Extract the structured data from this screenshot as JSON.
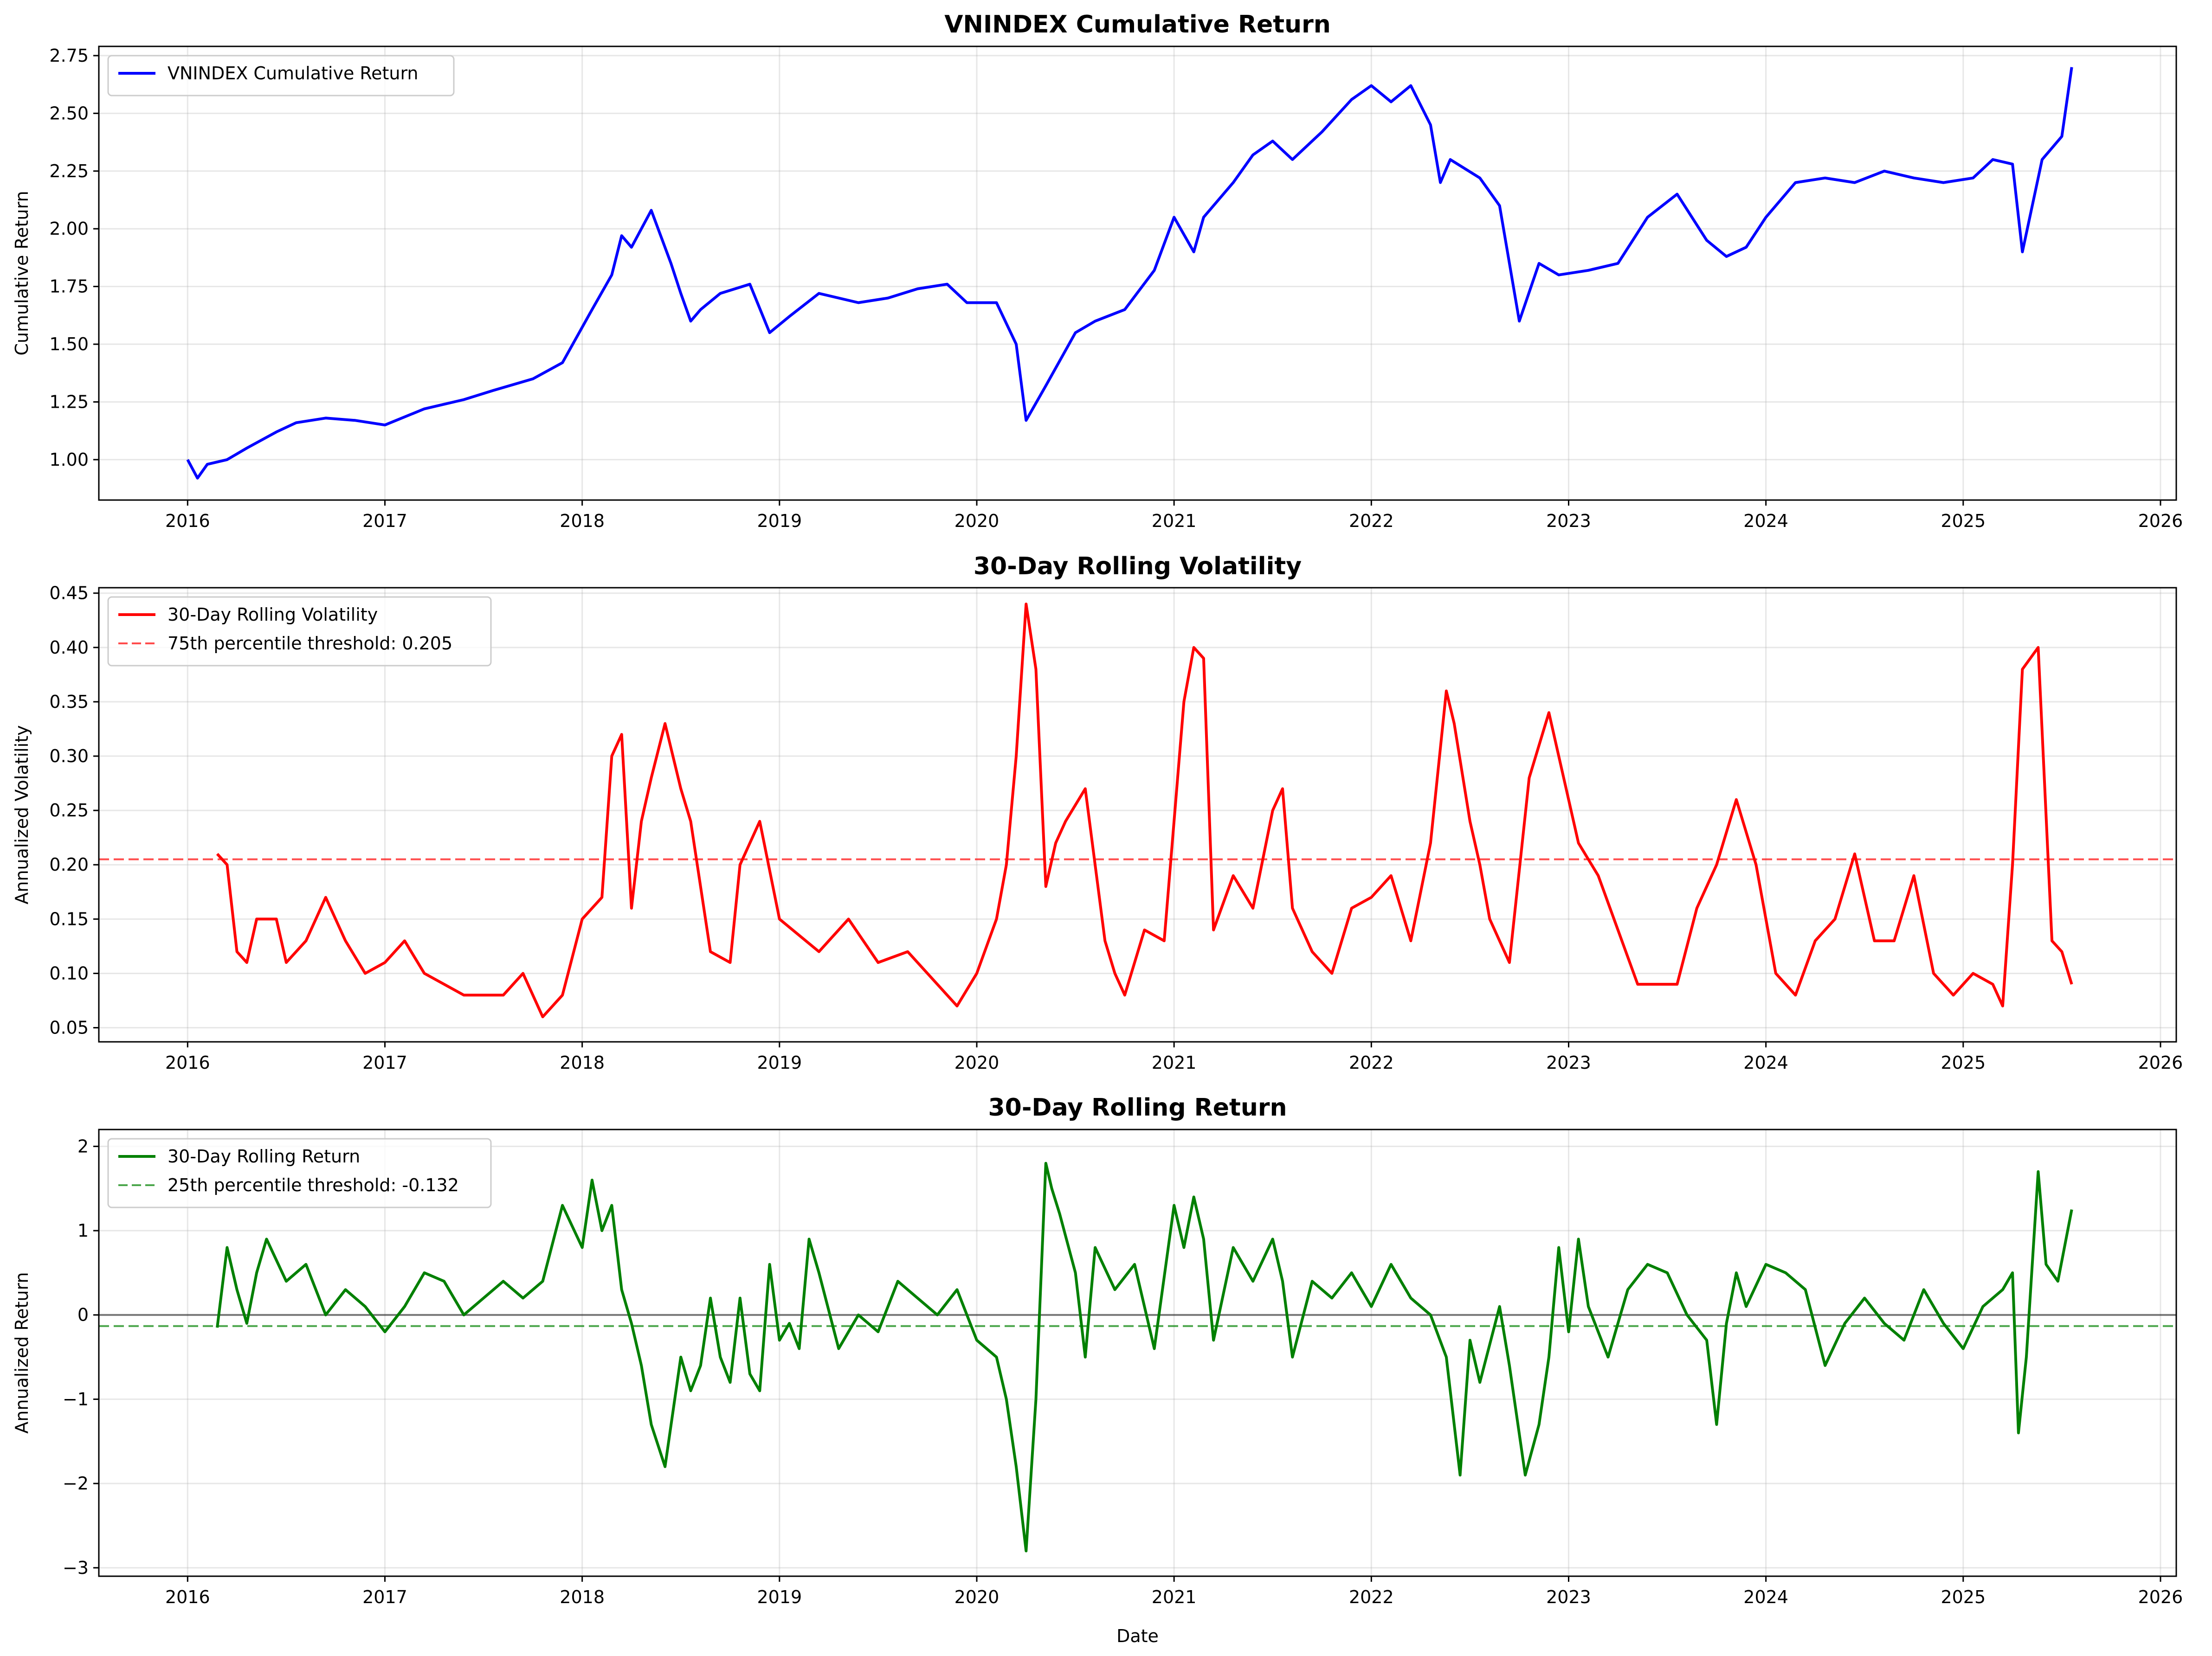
{
  "chart_data": [
    {
      "type": "line",
      "title": "VNINDEX Cumulative Return",
      "xlabel": "",
      "ylabel": "Cumulative Return",
      "xlim": [
        2015.55,
        2026.08
      ],
      "ylim": [
        0.825,
        2.79
      ],
      "xticks": [
        2016,
        2017,
        2018,
        2019,
        2020,
        2021,
        2022,
        2023,
        2024,
        2025,
        2026
      ],
      "xtick_labels": [
        "2016",
        "2017",
        "2018",
        "2019",
        "2020",
        "2021",
        "2022",
        "2023",
        "2024",
        "2025",
        "2026"
      ],
      "yticks": [
        1.0,
        1.25,
        1.5,
        1.75,
        2.0,
        2.25,
        2.5,
        2.75
      ],
      "ytick_labels": [
        "1.00",
        "1.25",
        "1.50",
        "1.75",
        "2.00",
        "2.25",
        "2.50",
        "2.75"
      ],
      "grid": true,
      "legend_position": "upper left",
      "series": [
        {
          "name": "VNINDEX Cumulative Return",
          "color": "#0000ff",
          "style": "solid",
          "x": [
            2016.0,
            2016.05,
            2016.1,
            2016.2,
            2016.3,
            2016.45,
            2016.55,
            2016.7,
            2016.85,
            2017.0,
            2017.2,
            2017.4,
            2017.55,
            2017.75,
            2017.9,
            2018.05,
            2018.15,
            2018.2,
            2018.25,
            2018.35,
            2018.45,
            2018.5,
            2018.55,
            2018.6,
            2018.7,
            2018.85,
            2018.95,
            2019.05,
            2019.2,
            2019.4,
            2019.55,
            2019.7,
            2019.85,
            2019.95,
            2020.1,
            2020.2,
            2020.25,
            2020.35,
            2020.5,
            2020.6,
            2020.75,
            2020.9,
            2021.0,
            2021.1,
            2021.15,
            2021.3,
            2021.4,
            2021.5,
            2021.6,
            2021.75,
            2021.9,
            2022.0,
            2022.1,
            2022.2,
            2022.3,
            2022.35,
            2022.4,
            2022.55,
            2022.65,
            2022.75,
            2022.85,
            2022.95,
            2023.1,
            2023.25,
            2023.4,
            2023.55,
            2023.7,
            2023.8,
            2023.9,
            2024.0,
            2024.15,
            2024.3,
            2024.45,
            2024.6,
            2024.75,
            2024.9,
            2025.05,
            2025.15,
            2025.25,
            2025.3,
            2025.4,
            2025.5,
            2025.55
          ],
          "y": [
            1.0,
            0.92,
            0.98,
            1.0,
            1.05,
            1.12,
            1.16,
            1.18,
            1.17,
            1.15,
            1.22,
            1.26,
            1.3,
            1.35,
            1.42,
            1.65,
            1.8,
            1.97,
            1.92,
            2.08,
            1.85,
            1.72,
            1.6,
            1.65,
            1.72,
            1.76,
            1.55,
            1.62,
            1.72,
            1.68,
            1.7,
            1.74,
            1.76,
            1.68,
            1.68,
            1.5,
            1.17,
            1.32,
            1.55,
            1.6,
            1.65,
            1.82,
            2.05,
            1.9,
            2.05,
            2.2,
            2.32,
            2.38,
            2.3,
            2.42,
            2.56,
            2.62,
            2.55,
            2.62,
            2.45,
            2.2,
            2.3,
            2.22,
            2.1,
            1.6,
            1.85,
            1.8,
            1.82,
            1.85,
            2.05,
            2.15,
            1.95,
            1.88,
            1.92,
            2.05,
            2.2,
            2.22,
            2.2,
            2.25,
            2.22,
            2.2,
            2.22,
            2.3,
            2.28,
            1.9,
            2.3,
            2.4,
            2.7
          ]
        }
      ]
    },
    {
      "type": "line",
      "title": "30-Day Rolling Volatility",
      "xlabel": "",
      "ylabel": "Annualized Volatility",
      "xlim": [
        2015.55,
        2026.08
      ],
      "ylim": [
        0.037,
        0.455
      ],
      "xticks": [
        2016,
        2017,
        2018,
        2019,
        2020,
        2021,
        2022,
        2023,
        2024,
        2025,
        2026
      ],
      "xtick_labels": [
        "2016",
        "2017",
        "2018",
        "2019",
        "2020",
        "2021",
        "2022",
        "2023",
        "2024",
        "2025",
        "2026"
      ],
      "yticks": [
        0.05,
        0.1,
        0.15,
        0.2,
        0.25,
        0.3,
        0.35,
        0.4,
        0.45
      ],
      "ytick_labels": [
        "0.05",
        "0.10",
        "0.15",
        "0.20",
        "0.25",
        "0.30",
        "0.35",
        "0.40",
        "0.45"
      ],
      "grid": true,
      "legend_position": "upper left",
      "threshold": {
        "value": 0.205,
        "label": "75th percentile threshold: 0.205",
        "color": "#ff0000"
      },
      "series": [
        {
          "name": "30-Day Rolling Volatility",
          "color": "#ff0000",
          "style": "solid",
          "x": [
            2016.15,
            2016.2,
            2016.25,
            2016.3,
            2016.35,
            2016.45,
            2016.5,
            2016.6,
            2016.7,
            2016.8,
            2016.9,
            2017.0,
            2017.1,
            2017.2,
            2017.4,
            2017.6,
            2017.7,
            2017.8,
            2017.9,
            2018.0,
            2018.1,
            2018.15,
            2018.2,
            2018.25,
            2018.3,
            2018.35,
            2018.42,
            2018.5,
            2018.55,
            2018.65,
            2018.75,
            2018.8,
            2018.9,
            2019.0,
            2019.2,
            2019.35,
            2019.5,
            2019.65,
            2019.8,
            2019.9,
            2020.0,
            2020.1,
            2020.15,
            2020.2,
            2020.25,
            2020.3,
            2020.35,
            2020.4,
            2020.45,
            2020.55,
            2020.65,
            2020.7,
            2020.75,
            2020.85,
            2020.95,
            2021.05,
            2021.1,
            2021.15,
            2021.2,
            2021.3,
            2021.4,
            2021.5,
            2021.55,
            2021.6,
            2021.7,
            2021.8,
            2021.9,
            2022.0,
            2022.1,
            2022.15,
            2022.2,
            2022.3,
            2022.38,
            2022.42,
            2022.5,
            2022.55,
            2022.6,
            2022.7,
            2022.8,
            2022.9,
            2022.95,
            2023.05,
            2023.15,
            2023.25,
            2023.35,
            2023.45,
            2023.55,
            2023.65,
            2023.75,
            2023.85,
            2023.95,
            2024.05,
            2024.15,
            2024.25,
            2024.35,
            2024.45,
            2024.55,
            2024.65,
            2024.75,
            2024.85,
            2024.95,
            2025.05,
            2025.15,
            2025.2,
            2025.25,
            2025.3,
            2025.38,
            2025.45,
            2025.5,
            2025.55
          ],
          "y": [
            0.21,
            0.2,
            0.12,
            0.11,
            0.15,
            0.15,
            0.11,
            0.13,
            0.17,
            0.13,
            0.1,
            0.11,
            0.13,
            0.1,
            0.08,
            0.08,
            0.1,
            0.06,
            0.08,
            0.15,
            0.17,
            0.3,
            0.32,
            0.16,
            0.24,
            0.28,
            0.33,
            0.27,
            0.24,
            0.12,
            0.11,
            0.2,
            0.24,
            0.15,
            0.12,
            0.15,
            0.11,
            0.12,
            0.09,
            0.07,
            0.1,
            0.15,
            0.2,
            0.3,
            0.44,
            0.38,
            0.18,
            0.22,
            0.24,
            0.27,
            0.13,
            0.1,
            0.08,
            0.14,
            0.13,
            0.35,
            0.4,
            0.39,
            0.14,
            0.19,
            0.16,
            0.25,
            0.27,
            0.16,
            0.12,
            0.1,
            0.16,
            0.17,
            0.19,
            0.16,
            0.13,
            0.22,
            0.36,
            0.33,
            0.24,
            0.2,
            0.15,
            0.11,
            0.28,
            0.34,
            0.3,
            0.22,
            0.19,
            0.14,
            0.09,
            0.09,
            0.09,
            0.16,
            0.2,
            0.26,
            0.2,
            0.1,
            0.08,
            0.13,
            0.15,
            0.21,
            0.13,
            0.13,
            0.19,
            0.1,
            0.08,
            0.1,
            0.09,
            0.07,
            0.2,
            0.38,
            0.4,
            0.13,
            0.12,
            0.09
          ]
        }
      ]
    },
    {
      "type": "line",
      "title": "30-Day Rolling Return",
      "xlabel": "Date",
      "ylabel": "Annualized Return",
      "xlim": [
        2015.55,
        2026.08
      ],
      "ylim": [
        -3.1,
        2.2
      ],
      "xticks": [
        2016,
        2017,
        2018,
        2019,
        2020,
        2021,
        2022,
        2023,
        2024,
        2025,
        2026
      ],
      "xtick_labels": [
        "2016",
        "2017",
        "2018",
        "2019",
        "2020",
        "2021",
        "2022",
        "2023",
        "2024",
        "2025",
        "2026"
      ],
      "yticks": [
        -3,
        -2,
        -1,
        0,
        1,
        2
      ],
      "ytick_labels": [
        "−3",
        "−2",
        "−1",
        "0",
        "1",
        "2"
      ],
      "grid": true,
      "legend_position": "upper left",
      "zero_line": {
        "value": 0,
        "color": "#000000"
      },
      "threshold": {
        "value": -0.132,
        "label": "25th percentile threshold: -0.132",
        "color": "#008000"
      },
      "series": [
        {
          "name": "30-Day Rolling Return",
          "color": "#008000",
          "style": "solid",
          "x": [
            2016.15,
            2016.2,
            2016.25,
            2016.3,
            2016.35,
            2016.4,
            2016.5,
            2016.6,
            2016.7,
            2016.8,
            2016.9,
            2017.0,
            2017.1,
            2017.2,
            2017.3,
            2017.4,
            2017.5,
            2017.6,
            2017.7,
            2017.8,
            2017.9,
            2018.0,
            2018.05,
            2018.1,
            2018.15,
            2018.2,
            2018.25,
            2018.3,
            2018.35,
            2018.42,
            2018.5,
            2018.55,
            2018.6,
            2018.65,
            2018.7,
            2018.75,
            2018.8,
            2018.85,
            2018.9,
            2018.95,
            2019.0,
            2019.05,
            2019.1,
            2019.15,
            2019.2,
            2019.3,
            2019.4,
            2019.5,
            2019.6,
            2019.7,
            2019.8,
            2019.9,
            2020.0,
            2020.1,
            2020.15,
            2020.2,
            2020.25,
            2020.3,
            2020.35,
            2020.38,
            2020.42,
            2020.5,
            2020.55,
            2020.6,
            2020.7,
            2020.8,
            2020.9,
            2021.0,
            2021.05,
            2021.1,
            2021.15,
            2021.2,
            2021.3,
            2021.4,
            2021.5,
            2021.55,
            2021.6,
            2021.7,
            2021.8,
            2021.9,
            2022.0,
            2022.1,
            2022.2,
            2022.3,
            2022.38,
            2022.45,
            2022.5,
            2022.55,
            2022.65,
            2022.7,
            2022.78,
            2022.85,
            2022.9,
            2022.95,
            2023.0,
            2023.05,
            2023.1,
            2023.2,
            2023.3,
            2023.4,
            2023.5,
            2023.6,
            2023.7,
            2023.75,
            2023.8,
            2023.85,
            2023.9,
            2024.0,
            2024.1,
            2024.2,
            2024.3,
            2024.4,
            2024.5,
            2024.6,
            2024.7,
            2024.8,
            2024.9,
            2025.0,
            2025.1,
            2025.2,
            2025.25,
            2025.28,
            2025.32,
            2025.38,
            2025.42,
            2025.48,
            2025.55
          ],
          "y": [
            -0.15,
            0.8,
            0.3,
            -0.1,
            0.5,
            0.9,
            0.4,
            0.6,
            0.0,
            0.3,
            0.1,
            -0.2,
            0.1,
            0.5,
            0.4,
            0.0,
            0.2,
            0.4,
            0.2,
            0.4,
            1.3,
            0.8,
            1.6,
            1.0,
            1.3,
            0.3,
            -0.1,
            -0.6,
            -1.3,
            -1.8,
            -0.5,
            -0.9,
            -0.6,
            0.2,
            -0.5,
            -0.8,
            0.2,
            -0.7,
            -0.9,
            0.6,
            -0.3,
            -0.1,
            -0.4,
            0.9,
            0.5,
            -0.4,
            0.0,
            -0.2,
            0.4,
            0.2,
            0.0,
            0.3,
            -0.3,
            -0.5,
            -1.0,
            -1.8,
            -2.8,
            -1.0,
            1.8,
            1.5,
            1.2,
            0.5,
            -0.5,
            0.8,
            0.3,
            0.6,
            -0.4,
            1.3,
            0.8,
            1.4,
            0.9,
            -0.3,
            0.8,
            0.4,
            0.9,
            0.4,
            -0.5,
            0.4,
            0.2,
            0.5,
            0.1,
            0.6,
            0.2,
            0.0,
            -0.5,
            -1.9,
            -0.3,
            -0.8,
            0.1,
            -0.6,
            -1.9,
            -1.3,
            -0.5,
            0.8,
            -0.2,
            0.9,
            0.1,
            -0.5,
            0.3,
            0.6,
            0.5,
            0.0,
            -0.3,
            -1.3,
            -0.1,
            0.5,
            0.1,
            0.6,
            0.5,
            0.3,
            -0.6,
            -0.1,
            0.2,
            -0.1,
            -0.3,
            0.3,
            -0.1,
            -0.4,
            0.1,
            0.3,
            0.5,
            -1.4,
            -0.5,
            1.7,
            0.6,
            0.4,
            1.25
          ]
        }
      ]
    }
  ]
}
